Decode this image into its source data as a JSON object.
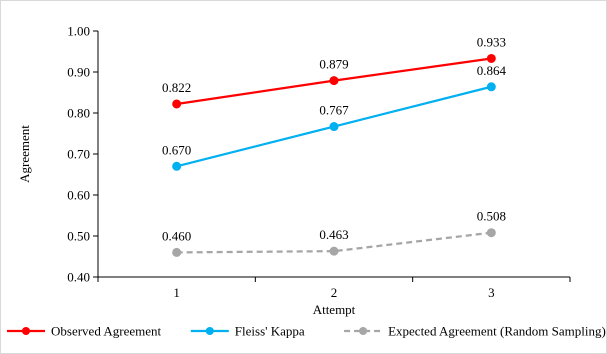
{
  "chart_data": {
    "type": "line",
    "title": "",
    "xlabel": "Attempt",
    "ylabel": "Agreement",
    "categories": [
      "1",
      "2",
      "3"
    ],
    "ylim": [
      0.4,
      1.0
    ],
    "yticks": [
      0.4,
      0.5,
      0.6,
      0.7,
      0.8,
      0.9,
      1.0
    ],
    "ytick_labels": [
      "0.40",
      "0.50",
      "0.60",
      "0.70",
      "0.80",
      "0.90",
      "1.00"
    ],
    "grid": false,
    "legend_position": "bottom",
    "series": [
      {
        "name": "Observed Agreement",
        "values": [
          0.822,
          0.879,
          0.933
        ],
        "labels": [
          "0.822",
          "0.879",
          "0.933"
        ],
        "color": "#ff0000",
        "dashed": false
      },
      {
        "name": "Fleiss' Kappa",
        "values": [
          0.67,
          0.767,
          0.864
        ],
        "labels": [
          "0.670",
          "0.767",
          "0.864"
        ],
        "color": "#00b0f0",
        "dashed": false
      },
      {
        "name": "Expected Agreement (Random Sampling)",
        "values": [
          0.46,
          0.463,
          0.508
        ],
        "labels": [
          "0.460",
          "0.463",
          "0.508"
        ],
        "color": "#a6a6a6",
        "dashed": true
      }
    ]
  }
}
